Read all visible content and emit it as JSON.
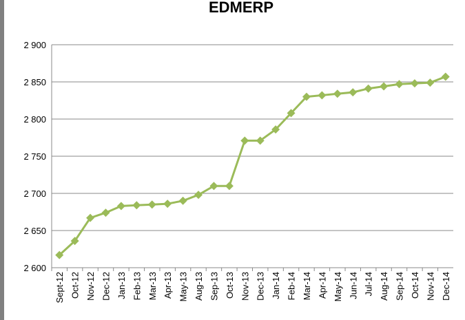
{
  "chart_data": {
    "type": "line",
    "title": "EDMERP",
    "categories": [
      "Sept-12",
      "Oct-12",
      "Nov-12",
      "Dec-12",
      "Jan-13",
      "Feb-13",
      "Mar-13",
      "Apr-13",
      "May-13",
      "Aug-13",
      "Sep-13",
      "Oct-13",
      "Nov-13",
      "Dec-13",
      "Jan-14",
      "Feb-14",
      "Mar-14",
      "Apr-14",
      "May-14",
      "Jun-14",
      "Jul-14",
      "Aug-14",
      "Sep-14",
      "Oct-14",
      "Nov-14",
      "Dec-14"
    ],
    "values": [
      2617,
      2636,
      2667,
      2674,
      2683,
      2684,
      2685,
      2686,
      2690,
      2698,
      2710,
      2710,
      2771,
      2771,
      2786,
      2808,
      2830,
      2832,
      2834,
      2836,
      2841,
      2844,
      2847,
      2848,
      2849,
      2857
    ],
    "color": "#9bbb59",
    "ylim": [
      2600,
      2900
    ],
    "yticks": [
      {
        "value": 2600,
        "label": "2 600"
      },
      {
        "value": 2650,
        "label": "2 650"
      },
      {
        "value": 2700,
        "label": "2 700"
      },
      {
        "value": 2750,
        "label": "2 750"
      },
      {
        "value": 2800,
        "label": "2 800"
      },
      {
        "value": 2850,
        "label": "2 850"
      },
      {
        "value": 2900,
        "label": "2 900"
      }
    ],
    "grid": true
  }
}
